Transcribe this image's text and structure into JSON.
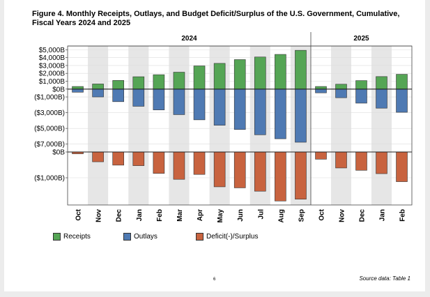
{
  "title": "Figure 4. Monthly Receipts, Outlays, and Budget Deficit/Surplus of the U.S. Government, Cumulative, Fiscal Years 2024 and 2025",
  "page_number": "6",
  "source_note": "Source data: Table 1",
  "colors": {
    "receipts": "#55a555",
    "outlays": "#4f7ab3",
    "deficit": "#c8633f",
    "shade": "#e6e6e6"
  },
  "chart_data": {
    "type": "bar",
    "years": [
      {
        "label": "2024",
        "months": [
          "Oct",
          "Nov",
          "Dec",
          "Jan",
          "Feb",
          "Mar",
          "Apr",
          "May",
          "Jun",
          "Jul",
          "Aug",
          "Sep"
        ]
      },
      {
        "label": "2025",
        "months": [
          "Oct",
          "Nov",
          "Dec",
          "Jan",
          "Feb"
        ]
      }
    ],
    "categories": [
      "Oct",
      "Nov",
      "Dec",
      "Jan",
      "Feb",
      "Mar",
      "Apr",
      "May",
      "Jun",
      "Jul",
      "Aug",
      "Sep",
      "Oct",
      "Nov",
      "Dec",
      "Jan",
      "Feb"
    ],
    "series": [
      {
        "name": "Receipts",
        "values": [
          330,
          650,
          1100,
          1570,
          1830,
          2150,
          2950,
          3270,
          3750,
          4080,
          4410,
          4930,
          330,
          620,
          1080,
          1590,
          1880
        ]
      },
      {
        "name": "Outlays",
        "values": [
          -400,
          -1000,
          -1600,
          -2190,
          -2650,
          -3250,
          -3910,
          -4600,
          -5140,
          -5810,
          -6320,
          -6760,
          -480,
          -1100,
          -1790,
          -2430,
          -2950
        ]
      },
      {
        "name": "Deficit(-)/Surplus",
        "values": [
          -70,
          -380,
          -510,
          -530,
          -830,
          -1060,
          -870,
          -1350,
          -1390,
          -1520,
          -1900,
          -1830,
          -280,
          -620,
          -710,
          -840,
          -1150
        ]
      }
    ],
    "upper_panel": {
      "ylim": [
        -8000,
        5300
      ],
      "yticks": [
        {
          "value": 5000,
          "label": "$5,000B"
        },
        {
          "value": 4000,
          "label": "$4,000B"
        },
        {
          "value": 3000,
          "label": "$3,000B"
        },
        {
          "value": 2000,
          "label": "$2,000B"
        },
        {
          "value": 1000,
          "label": "$1,000B"
        },
        {
          "value": 0,
          "label": "$0B"
        },
        {
          "value": -1000,
          "label": "($1,000B)"
        },
        {
          "value": -3000,
          "label": "($3,000B)"
        },
        {
          "value": -5000,
          "label": "($5,000B)"
        },
        {
          "value": -7000,
          "label": "($7,000B)"
        }
      ]
    },
    "lower_panel": {
      "ylim": [
        -2000,
        0
      ],
      "yticks": [
        {
          "value": 0,
          "label": "$0B"
        },
        {
          "value": -1000,
          "label": "($1,000B)"
        }
      ]
    },
    "grid": true,
    "legend_position": "bottom-left"
  }
}
